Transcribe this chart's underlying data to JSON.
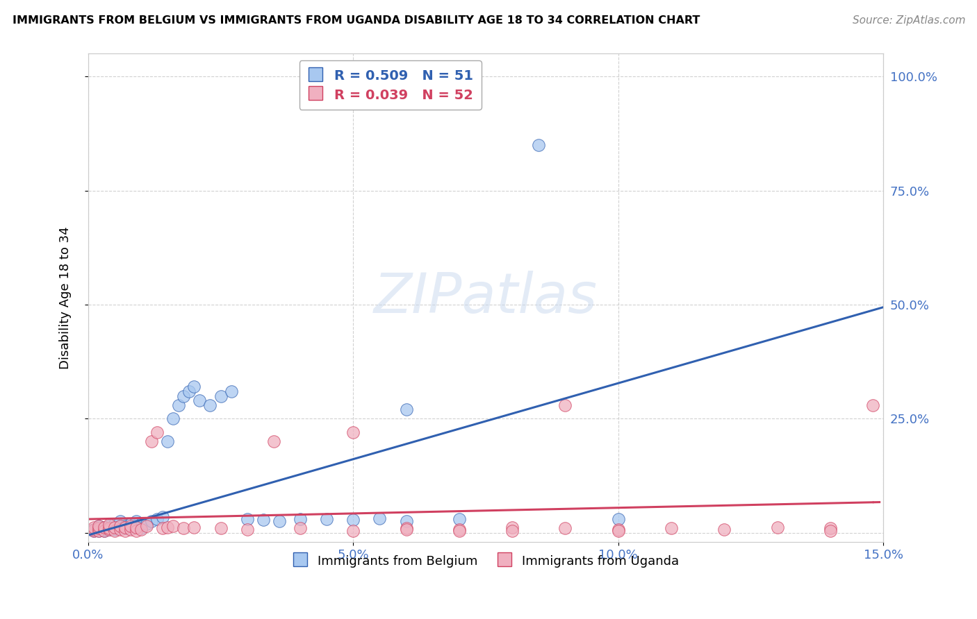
{
  "title": "IMMIGRANTS FROM BELGIUM VS IMMIGRANTS FROM UGANDA DISABILITY AGE 18 TO 34 CORRELATION CHART",
  "source": "Source: ZipAtlas.com",
  "ylabel": "Disability Age 18 to 34",
  "xlim": [
    0.0,
    0.15
  ],
  "ylim": [
    -0.02,
    1.05
  ],
  "xticks": [
    0.0,
    0.05,
    0.1,
    0.15
  ],
  "xticklabels": [
    "0.0%",
    "5.0%",
    "10.0%",
    "15.0%"
  ],
  "yticks": [
    0.0,
    0.25,
    0.5,
    0.75,
    1.0
  ],
  "yticklabels": [
    "",
    "25.0%",
    "50.0%",
    "75.0%",
    "100.0%"
  ],
  "blue_color": "#a8c8f0",
  "pink_color": "#f0b0c0",
  "blue_R": 0.509,
  "blue_N": 51,
  "pink_R": 0.039,
  "pink_N": 52,
  "blue_line_color": "#3060b0",
  "pink_line_color": "#d04060",
  "blue_scatter_x": [
    0.001,
    0.001,
    0.002,
    0.002,
    0.002,
    0.003,
    0.003,
    0.003,
    0.004,
    0.004,
    0.004,
    0.005,
    0.005,
    0.005,
    0.006,
    0.006,
    0.006,
    0.007,
    0.007,
    0.008,
    0.008,
    0.009,
    0.009,
    0.01,
    0.01,
    0.011,
    0.012,
    0.013,
    0.014,
    0.015,
    0.016,
    0.017,
    0.018,
    0.019,
    0.02,
    0.021,
    0.023,
    0.025,
    0.027,
    0.03,
    0.033,
    0.036,
    0.04,
    0.045,
    0.05,
    0.055,
    0.06,
    0.07,
    0.085,
    0.1,
    0.06
  ],
  "blue_scatter_y": [
    0.005,
    0.008,
    0.005,
    0.01,
    0.015,
    0.005,
    0.008,
    0.012,
    0.008,
    0.01,
    0.015,
    0.008,
    0.012,
    0.02,
    0.01,
    0.015,
    0.025,
    0.01,
    0.015,
    0.01,
    0.02,
    0.015,
    0.025,
    0.01,
    0.02,
    0.02,
    0.025,
    0.03,
    0.035,
    0.2,
    0.25,
    0.28,
    0.3,
    0.31,
    0.32,
    0.29,
    0.28,
    0.3,
    0.31,
    0.03,
    0.028,
    0.026,
    0.03,
    0.03,
    0.028,
    0.032,
    0.026,
    0.03,
    0.85,
    0.03,
    0.27
  ],
  "pink_scatter_x": [
    0.001,
    0.001,
    0.001,
    0.002,
    0.002,
    0.002,
    0.003,
    0.003,
    0.004,
    0.004,
    0.004,
    0.005,
    0.005,
    0.006,
    0.006,
    0.007,
    0.007,
    0.008,
    0.008,
    0.009,
    0.009,
    0.01,
    0.011,
    0.012,
    0.013,
    0.014,
    0.015,
    0.016,
    0.018,
    0.02,
    0.025,
    0.03,
    0.035,
    0.04,
    0.05,
    0.06,
    0.07,
    0.08,
    0.09,
    0.1,
    0.11,
    0.12,
    0.13,
    0.14,
    0.148,
    0.05,
    0.06,
    0.07,
    0.08,
    0.09,
    0.1,
    0.14
  ],
  "pink_scatter_y": [
    0.005,
    0.008,
    0.012,
    0.005,
    0.01,
    0.015,
    0.005,
    0.012,
    0.008,
    0.01,
    0.018,
    0.005,
    0.012,
    0.008,
    0.015,
    0.005,
    0.012,
    0.008,
    0.015,
    0.005,
    0.012,
    0.008,
    0.015,
    0.2,
    0.22,
    0.01,
    0.012,
    0.015,
    0.01,
    0.012,
    0.01,
    0.008,
    0.2,
    0.01,
    0.22,
    0.01,
    0.008,
    0.012,
    0.01,
    0.008,
    0.01,
    0.008,
    0.012,
    0.01,
    0.28,
    0.005,
    0.008,
    0.005,
    0.005,
    0.28,
    0.005,
    0.005
  ]
}
